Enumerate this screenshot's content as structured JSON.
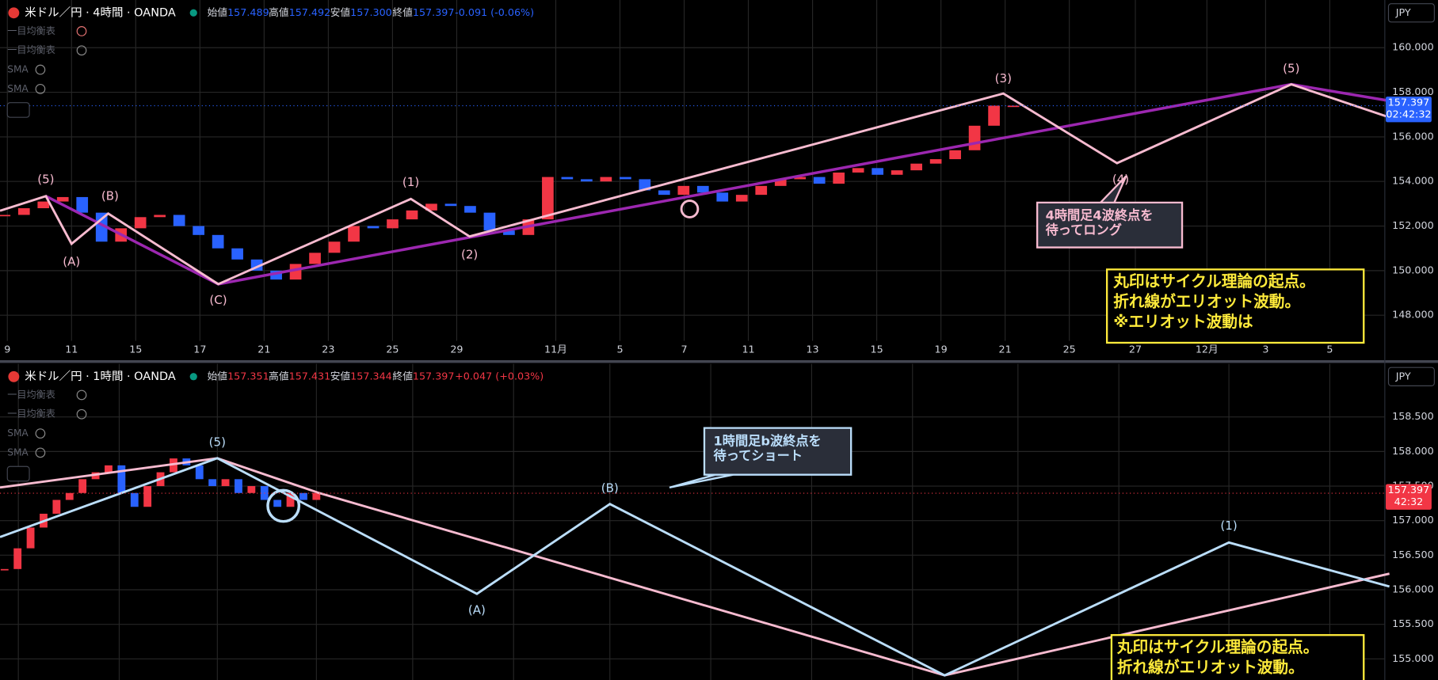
{
  "panels": [
    {
      "title": "米ドル／円 · 4時間 · OANDA",
      "ohlc_labels": [
        "始値",
        "高値",
        "安値",
        "終値"
      ],
      "ohlc_values": [
        "157.489",
        "157.492",
        "157.300",
        "157.397"
      ],
      "change": "-0.091 (-0.06%)",
      "indicators": [
        "一目均衡表",
        "一目均衡表",
        "SMA",
        "SMA"
      ],
      "currency": "JPY",
      "yticks": [
        {
          "value": 160,
          "label": "160.000"
        },
        {
          "value": 158,
          "label": "158.000"
        },
        {
          "value": 156,
          "label": "156.000"
        },
        {
          "value": 154,
          "label": "154.000"
        },
        {
          "value": 152,
          "label": "152.000"
        },
        {
          "value": 150,
          "label": "150.000"
        },
        {
          "value": 148,
          "label": "148.000"
        }
      ],
      "xticks": [
        "9",
        "11",
        "15",
        "17",
        "21",
        "23",
        "25",
        "29",
        "11月",
        "5",
        "7",
        "11",
        "13",
        "15",
        "19",
        "21",
        "25",
        "27",
        "12月",
        "3",
        "5"
      ],
      "price": {
        "value": 157.397,
        "label": "157.397"
      },
      "countdown": "02:42:32",
      "waves": [
        "(5)",
        "(A)",
        "(B)",
        "(C)",
        "(1)",
        "(2)",
        "(3)",
        "(4)",
        "(5)"
      ],
      "callout": [
        "4時間足4波終点を",
        "待ってロング"
      ],
      "note": [
        "丸印はサイクル理論の起点。",
        "折れ線がエリオット波動。",
        "※エリオット波動は"
      ],
      "closes": [
        152.5,
        152.8,
        153.1,
        153.3,
        152.6,
        151.3,
        151.9,
        152.4,
        152.5,
        152.0,
        151.6,
        151.0,
        150.5,
        150.0,
        149.6,
        150.3,
        150.8,
        151.3,
        152.0,
        151.9,
        152.3,
        152.7,
        153.0,
        152.9,
        152.6,
        151.8,
        151.6,
        152.3,
        154.2,
        154.1,
        154.0,
        154.2,
        154.1,
        153.6,
        153.4,
        153.8,
        153.5,
        153.1,
        153.4,
        153.8,
        154.1,
        154.2,
        153.9,
        154.4,
        154.6,
        154.3,
        154.5,
        154.8,
        155.0,
        155.4,
        156.5,
        157.4,
        157.4
      ]
    },
    {
      "title": "米ドル／円 · 1時間 · OANDA",
      "ohlc_labels": [
        "始値",
        "高値",
        "安値",
        "終値"
      ],
      "ohlc_values": [
        "157.351",
        "157.431",
        "157.344",
        "157.397"
      ],
      "change": "+0.047 (+0.03%)",
      "indicators": [
        "一目均衡表",
        "一目均衡表",
        "SMA",
        "SMA"
      ],
      "currency": "JPY",
      "yticks": [
        {
          "value": 158.5,
          "label": "158.500"
        },
        {
          "value": 158,
          "label": "158.000"
        },
        {
          "value": 157.5,
          "label": "157.500"
        },
        {
          "value": 157,
          "label": "157.000"
        },
        {
          "value": 156.5,
          "label": "156.500"
        },
        {
          "value": 156,
          "label": "156.000"
        },
        {
          "value": 155.5,
          "label": "155.500"
        },
        {
          "value": 155,
          "label": "155.000"
        }
      ],
      "xticks": [],
      "price": {
        "value": 157.397,
        "label": "157.397"
      },
      "countdown": "42:32",
      "waves": [
        "(5)",
        "(A)",
        "(B)",
        "(1)"
      ],
      "callout": [
        "1時間足b波終点を",
        "待ってショート"
      ],
      "note": [
        "丸印はサイクル理論の起点。",
        "折れ線がエリオット波動。"
      ],
      "closes": [
        156.3,
        156.6,
        156.9,
        157.1,
        157.3,
        157.4,
        157.6,
        157.7,
        157.8,
        157.4,
        157.2,
        157.5,
        157.7,
        157.9,
        157.8,
        157.6,
        157.5,
        157.6,
        157.4,
        157.5,
        157.3,
        157.2,
        157.4,
        157.3,
        157.4
      ]
    }
  ]
}
